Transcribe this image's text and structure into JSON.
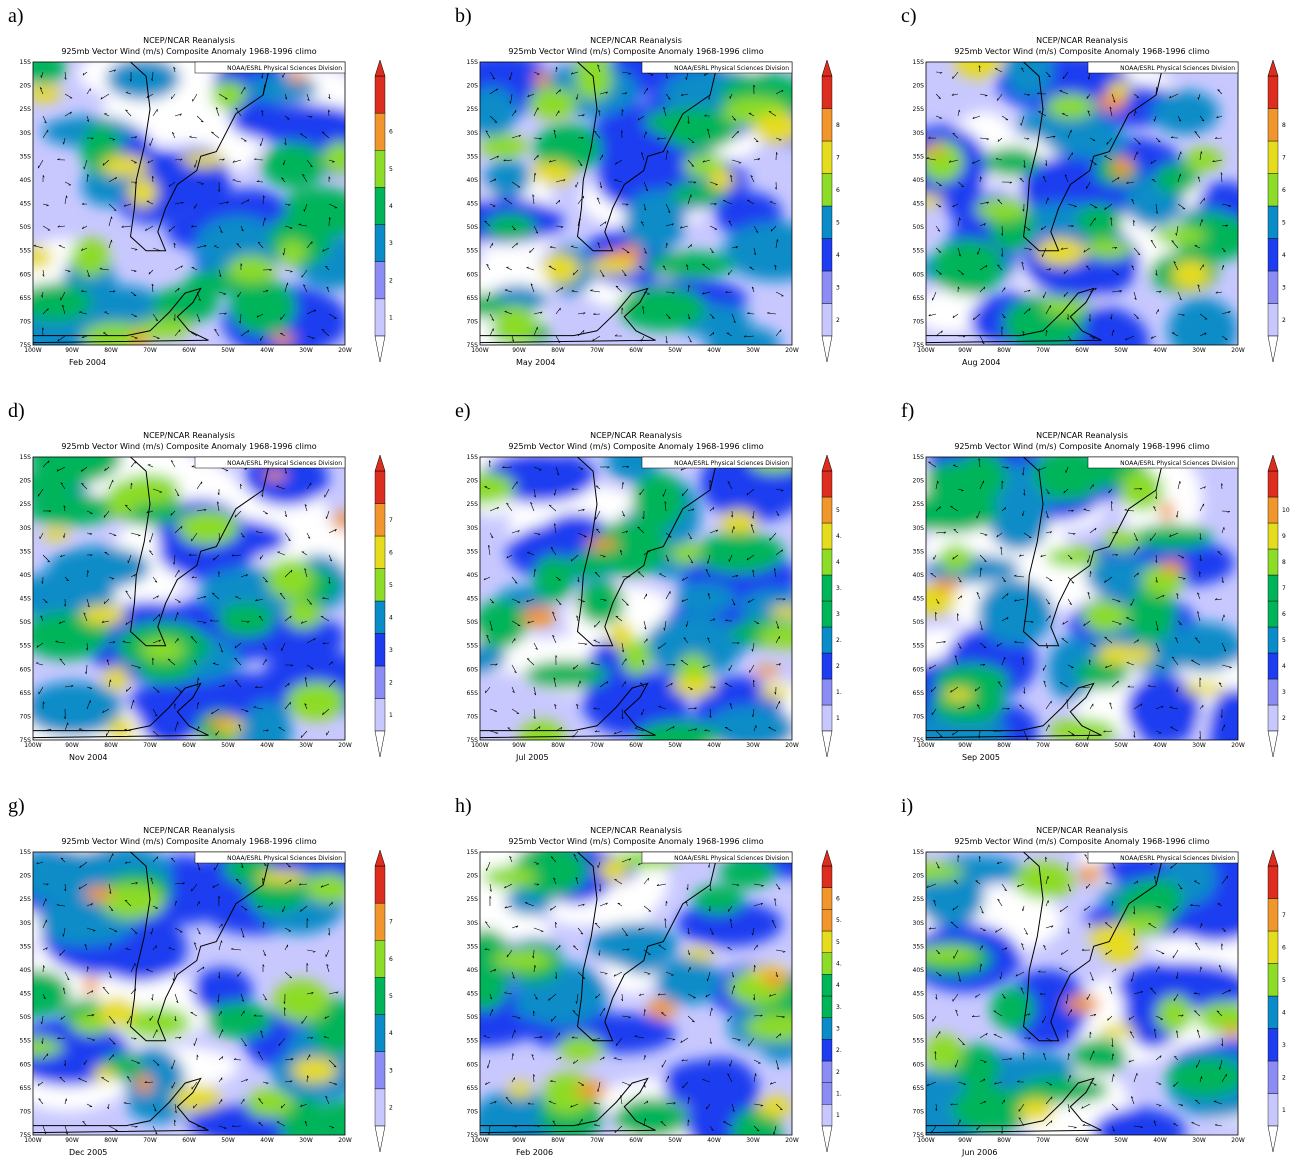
{
  "title_lines": [
    "NCEP/NCAR Reanalysis",
    "925mb Vector Wind (m/s) Composite Anomaly 1968-1996 climo"
  ],
  "source": "NOAA/ESRL Physical Sciences Division",
  "lat_labels": [
    "15S",
    "20S",
    "25S",
    "30S",
    "35S",
    "40S",
    "45S",
    "50S",
    "55S",
    "60S",
    "65S",
    "70S",
    "75S"
  ],
  "lon_labels": [
    "100W",
    "90W",
    "80W",
    "70W",
    "60W",
    "50W",
    "40W",
    "30W",
    "20W"
  ],
  "panels": [
    {
      "label": "a)",
      "date": "Feb 2004",
      "colorbar_ticks": [
        "1",
        "2",
        "3",
        "4",
        "5",
        "6"
      ]
    },
    {
      "label": "b)",
      "date": "May 2004",
      "colorbar_ticks": [
        "2",
        "3",
        "4",
        "5",
        "6",
        "7",
        "8"
      ]
    },
    {
      "label": "c)",
      "date": "Aug 2004",
      "colorbar_ticks": [
        "2",
        "3",
        "4",
        "5",
        "6",
        "7",
        "8"
      ]
    },
    {
      "label": "d)",
      "date": "Nov 2004",
      "colorbar_ticks": [
        "1",
        "2",
        "3",
        "4",
        "5",
        "6",
        "7"
      ]
    },
    {
      "label": "e)",
      "date": "Jul 2005",
      "colorbar_ticks": [
        "1",
        "1.",
        "2",
        "2.",
        "3",
        "3.",
        "4",
        "4.",
        "5"
      ]
    },
    {
      "label": "f)",
      "date": "Sep 2005",
      "colorbar_ticks": [
        "2",
        "3",
        "4",
        "5",
        "6",
        "7",
        "8",
        "9",
        "10"
      ]
    },
    {
      "label": "g)",
      "date": "Dec 2005",
      "colorbar_ticks": [
        "2",
        "3",
        "4",
        "5",
        "6",
        "7"
      ]
    },
    {
      "label": "h)",
      "date": "Feb 2006",
      "colorbar_ticks": [
        "1",
        "1.",
        "2",
        "2.",
        "3",
        "3.",
        "4",
        "4.",
        "5",
        "5.",
        "6"
      ]
    },
    {
      "label": "i)",
      "date": "Jun 2006",
      "colorbar_ticks": [
        "1",
        "2",
        "3",
        "4",
        "5",
        "6",
        "7"
      ]
    }
  ]
}
